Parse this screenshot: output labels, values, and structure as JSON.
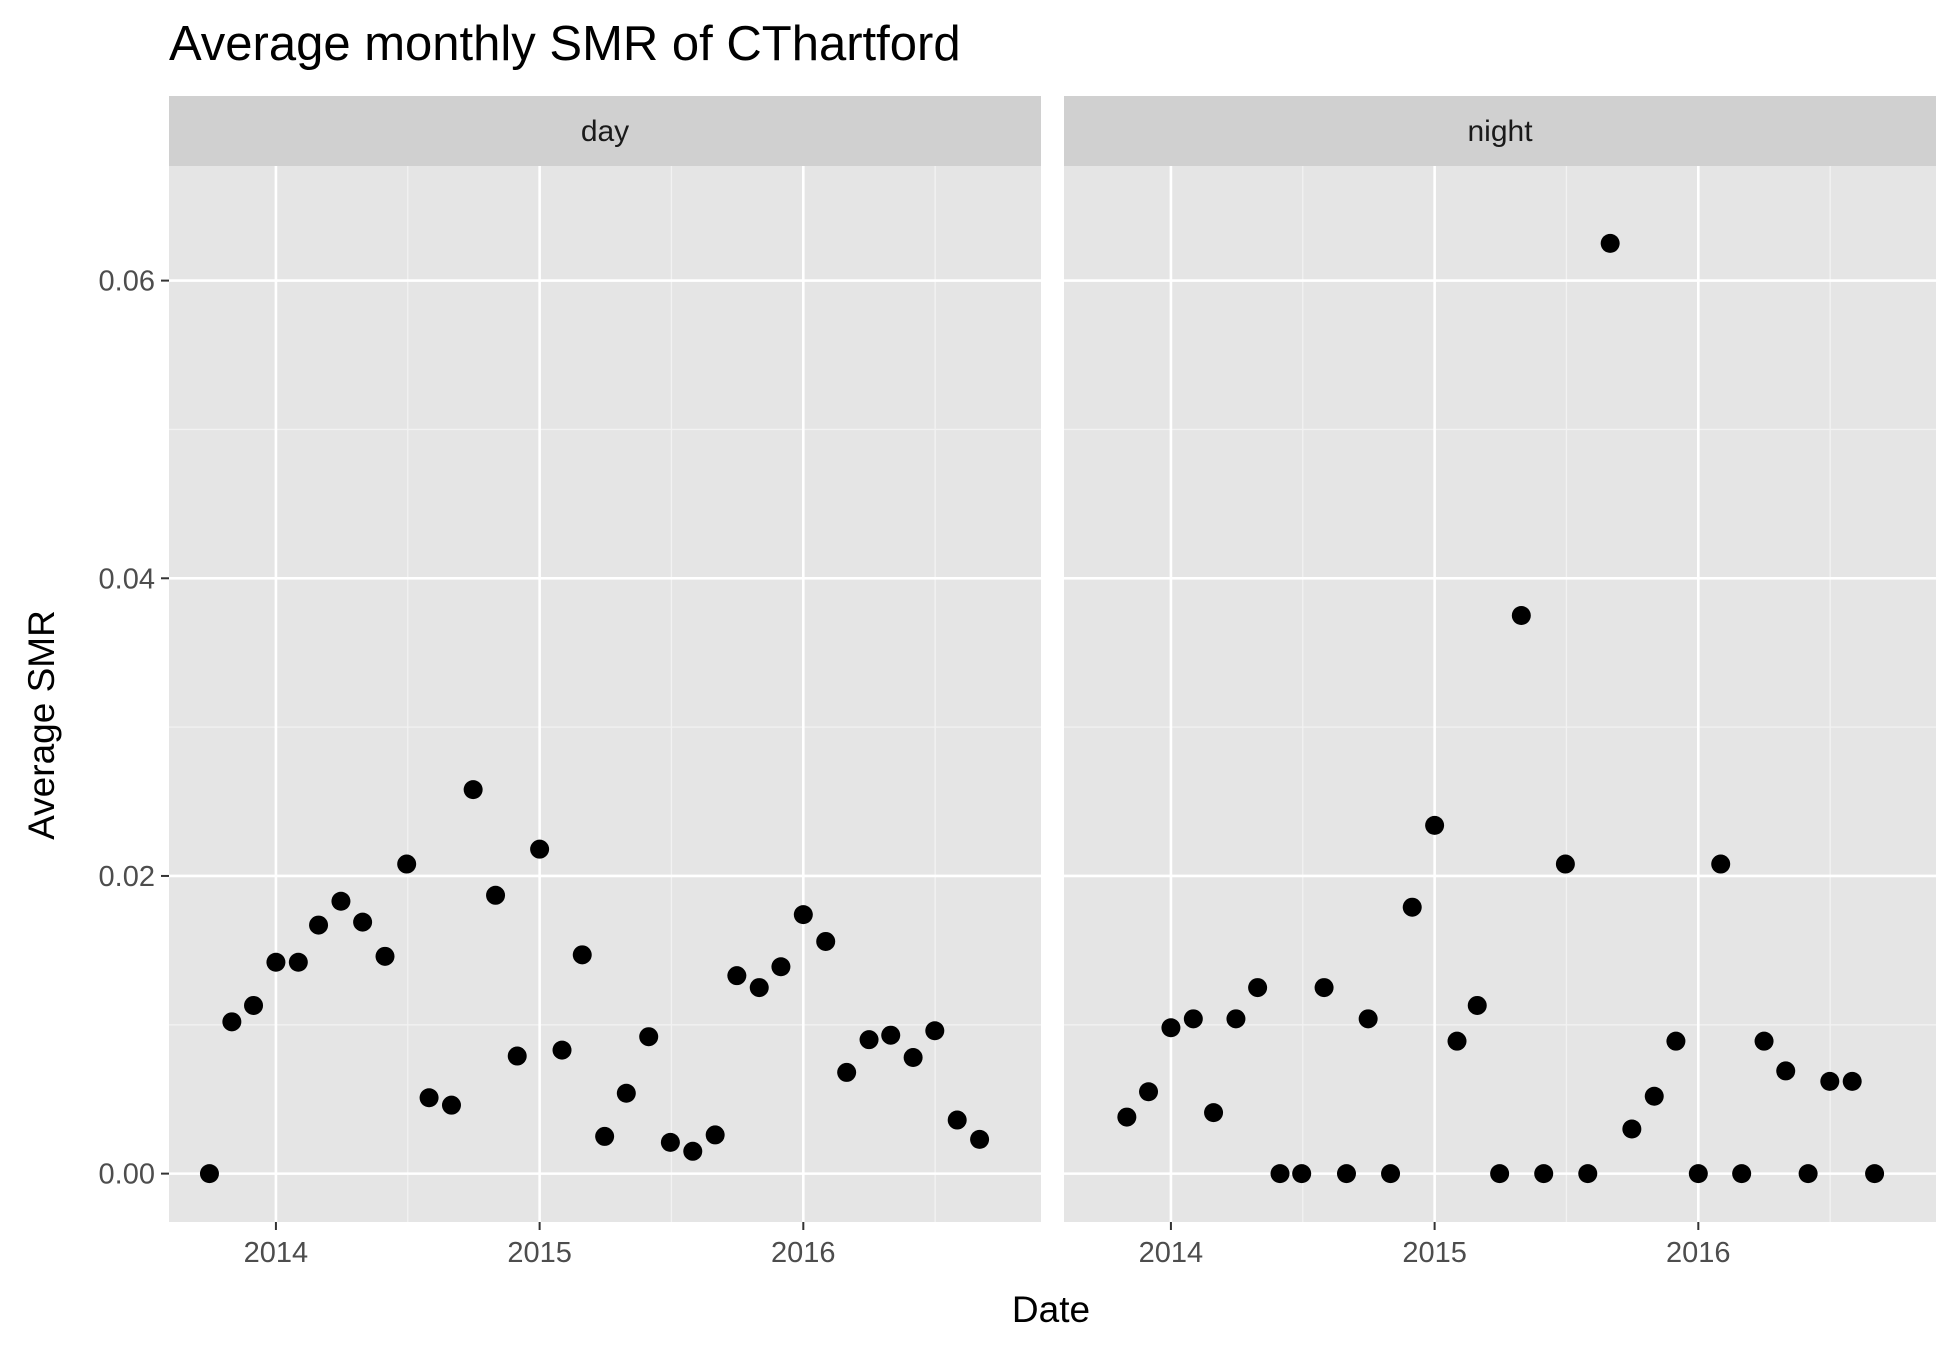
{
  "chart_data": {
    "type": "scatter",
    "title": "Average monthly SMR of CThartford",
    "xlabel": "Date",
    "ylabel": "Average SMR",
    "xlim": [
      "2013-08-06",
      "2016-11-25"
    ],
    "ylim": [
      -0.00325,
      0.0677
    ],
    "x_ticks": [
      "2014-01-01",
      "2015-01-01",
      "2016-01-01"
    ],
    "x_tick_labels": [
      "2014",
      "2015",
      "2016"
    ],
    "y_ticks": [
      0.0,
      0.02,
      0.04,
      0.06
    ],
    "y_tick_labels": [
      "0.00",
      "0.02",
      "0.04",
      "0.06"
    ],
    "grid": true,
    "panels": [
      {
        "label": "day",
        "points": [
          {
            "x": "2013-10-01",
            "y": 0.0
          },
          {
            "x": "2013-11-01",
            "y": 0.0102
          },
          {
            "x": "2013-12-01",
            "y": 0.0113
          },
          {
            "x": "2014-01-01",
            "y": 0.0142
          },
          {
            "x": "2014-02-01",
            "y": 0.0142
          },
          {
            "x": "2014-03-01",
            "y": 0.0167
          },
          {
            "x": "2014-04-01",
            "y": 0.0183
          },
          {
            "x": "2014-05-01",
            "y": 0.0169
          },
          {
            "x": "2014-06-01",
            "y": 0.0146
          },
          {
            "x": "2014-07-01",
            "y": 0.0208
          },
          {
            "x": "2014-08-01",
            "y": 0.0051
          },
          {
            "x": "2014-09-01",
            "y": 0.0046
          },
          {
            "x": "2014-10-01",
            "y": 0.0258
          },
          {
            "x": "2014-11-01",
            "y": 0.0187
          },
          {
            "x": "2014-12-01",
            "y": 0.0079
          },
          {
            "x": "2015-01-01",
            "y": 0.0218
          },
          {
            "x": "2015-02-01",
            "y": 0.0083
          },
          {
            "x": "2015-03-01",
            "y": 0.0147
          },
          {
            "x": "2015-04-01",
            "y": 0.0025
          },
          {
            "x": "2015-05-01",
            "y": 0.0054
          },
          {
            "x": "2015-06-01",
            "y": 0.0092
          },
          {
            "x": "2015-07-01",
            "y": 0.0021
          },
          {
            "x": "2015-08-01",
            "y": 0.0015
          },
          {
            "x": "2015-09-01",
            "y": 0.0026
          },
          {
            "x": "2015-10-01",
            "y": 0.0133
          },
          {
            "x": "2015-11-01",
            "y": 0.0125
          },
          {
            "x": "2015-12-01",
            "y": 0.0139
          },
          {
            "x": "2016-01-01",
            "y": 0.0174
          },
          {
            "x": "2016-02-01",
            "y": 0.0156
          },
          {
            "x": "2016-03-01",
            "y": 0.0068
          },
          {
            "x": "2016-04-01",
            "y": 0.009
          },
          {
            "x": "2016-05-01",
            "y": 0.0093
          },
          {
            "x": "2016-06-01",
            "y": 0.0078
          },
          {
            "x": "2016-07-01",
            "y": 0.0096
          },
          {
            "x": "2016-08-01",
            "y": 0.0036
          },
          {
            "x": "2016-09-01",
            "y": 0.0023
          }
        ]
      },
      {
        "label": "night",
        "points": [
          {
            "x": "2013-11-01",
            "y": 0.0038
          },
          {
            "x": "2013-12-01",
            "y": 0.0055
          },
          {
            "x": "2014-01-01",
            "y": 0.0098
          },
          {
            "x": "2014-02-01",
            "y": 0.0104
          },
          {
            "x": "2014-03-01",
            "y": 0.0041
          },
          {
            "x": "2014-04-01",
            "y": 0.0104
          },
          {
            "x": "2014-05-01",
            "y": 0.0125
          },
          {
            "x": "2014-06-01",
            "y": 0.0
          },
          {
            "x": "2014-07-01",
            "y": 0.0
          },
          {
            "x": "2014-08-01",
            "y": 0.0125
          },
          {
            "x": "2014-09-01",
            "y": 0.0
          },
          {
            "x": "2014-10-01",
            "y": 0.0104
          },
          {
            "x": "2014-11-01",
            "y": 0.0
          },
          {
            "x": "2014-12-01",
            "y": 0.0179
          },
          {
            "x": "2015-01-01",
            "y": 0.0234
          },
          {
            "x": "2015-02-01",
            "y": 0.0089
          },
          {
            "x": "2015-03-01",
            "y": 0.0113
          },
          {
            "x": "2015-04-01",
            "y": 0.0
          },
          {
            "x": "2015-05-01",
            "y": 0.0375
          },
          {
            "x": "2015-06-01",
            "y": 0.0
          },
          {
            "x": "2015-07-01",
            "y": 0.0208
          },
          {
            "x": "2015-08-01",
            "y": 0.0
          },
          {
            "x": "2015-09-01",
            "y": 0.0625
          },
          {
            "x": "2015-10-01",
            "y": 0.003
          },
          {
            "x": "2015-11-01",
            "y": 0.0052
          },
          {
            "x": "2015-12-01",
            "y": 0.0089
          },
          {
            "x": "2016-01-01",
            "y": 0.0
          },
          {
            "x": "2016-02-01",
            "y": 0.0208
          },
          {
            "x": "2016-03-01",
            "y": 0.0
          },
          {
            "x": "2016-04-01",
            "y": 0.0089
          },
          {
            "x": "2016-05-01",
            "y": 0.0069
          },
          {
            "x": "2016-06-01",
            "y": 0.0
          },
          {
            "x": "2016-07-01",
            "y": 0.0062
          },
          {
            "x": "2016-08-01",
            "y": 0.0062
          },
          {
            "x": "2016-09-01",
            "y": 0.0
          }
        ]
      }
    ],
    "colors": {
      "panel_background": "#e5e5e5",
      "strip_background": "#d0d0d0",
      "grid_major": "#ffffff",
      "grid_minor": "#f2f2f2",
      "point": "#000000",
      "tick_label": "#4d4d4d",
      "tick": "#333333"
    }
  }
}
